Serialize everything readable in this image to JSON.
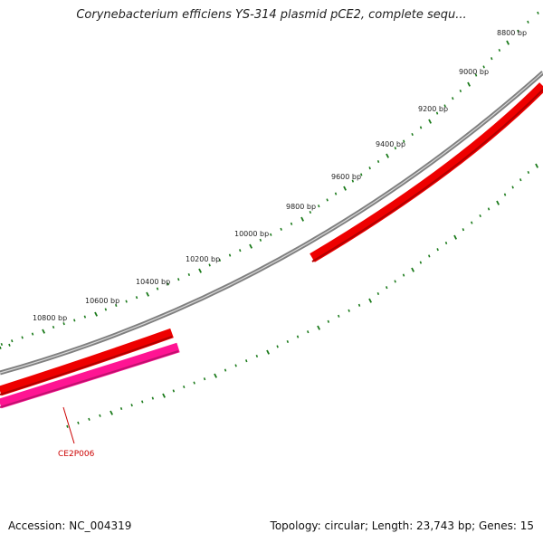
{
  "title": "Corynebacterium efficiens YS-314 plasmid pCE2, complete sequ...",
  "footer": {
    "accession": "Accession: NC_004319",
    "summary": "Topology: circular; Length: 23,743 bp; Genes: 15"
  },
  "ticks": [
    {
      "label": "8800 bp"
    },
    {
      "label": "9000 bp"
    },
    {
      "label": "9200 bp"
    },
    {
      "label": "9400 bp"
    },
    {
      "label": "9600 bp"
    },
    {
      "label": "9800 bp"
    },
    {
      "label": "10000 bp"
    },
    {
      "label": "10200 bp"
    },
    {
      "label": "10400 bp"
    },
    {
      "label": "10600 bp"
    },
    {
      "label": "10800 bp"
    }
  ],
  "gene_label": "CE2P006",
  "colors": {
    "backbone": "#808080",
    "forward_gene": "#ee0000",
    "reverse_gene": "#ff1493",
    "ticks": "#1a7a1a",
    "gene_label": "#cc0000"
  }
}
